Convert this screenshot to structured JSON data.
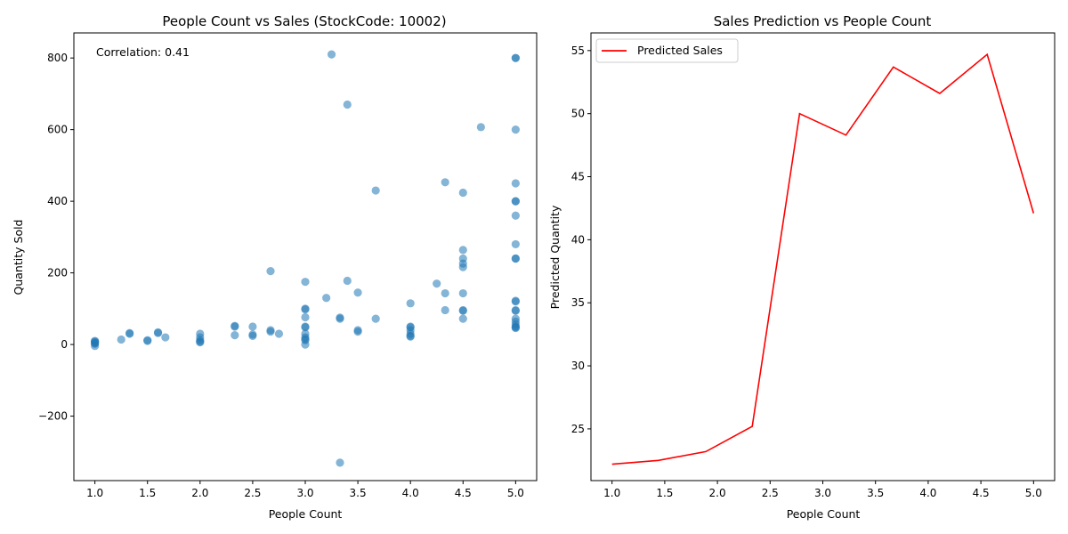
{
  "chart_data": [
    {
      "type": "scatter",
      "title": "People Count vs Sales (StockCode: 10002)",
      "xlabel": "People Count",
      "ylabel": "Quantity Sold",
      "xlim": [
        0.8,
        5.2
      ],
      "ylim": [
        -380,
        870
      ],
      "xticks": [
        "1.0",
        "1.5",
        "2.0",
        "2.5",
        "3.0",
        "3.5",
        "4.0",
        "4.5",
        "5.0"
      ],
      "yticks": [
        "−200",
        "0",
        "200",
        "400",
        "600",
        "800"
      ],
      "annotation": "Correlation: 0.41",
      "color": "#1f77b4",
      "points": [
        [
          1.0,
          10
        ],
        [
          1.0,
          8
        ],
        [
          1.0,
          6
        ],
        [
          1.0,
          4
        ],
        [
          1.0,
          2
        ],
        [
          1.0,
          -4
        ],
        [
          1.25,
          14
        ],
        [
          1.33,
          30
        ],
        [
          1.33,
          32
        ],
        [
          1.5,
          10
        ],
        [
          1.5,
          12
        ],
        [
          1.6,
          32
        ],
        [
          1.6,
          34
        ],
        [
          1.67,
          20
        ],
        [
          2.0,
          30
        ],
        [
          2.0,
          20
        ],
        [
          2.0,
          12
        ],
        [
          2.0,
          8
        ],
        [
          2.0,
          6
        ],
        [
          2.33,
          52
        ],
        [
          2.33,
          50
        ],
        [
          2.33,
          26
        ],
        [
          2.5,
          50
        ],
        [
          2.5,
          28
        ],
        [
          2.5,
          24
        ],
        [
          2.67,
          205
        ],
        [
          2.67,
          40
        ],
        [
          2.67,
          36
        ],
        [
          2.75,
          30
        ],
        [
          3.0,
          175
        ],
        [
          3.0,
          100
        ],
        [
          3.0,
          98
        ],
        [
          3.0,
          76
        ],
        [
          3.0,
          50
        ],
        [
          3.0,
          48
        ],
        [
          3.0,
          30
        ],
        [
          3.0,
          20
        ],
        [
          3.0,
          15
        ],
        [
          3.0,
          12
        ],
        [
          3.0,
          0
        ],
        [
          3.2,
          130
        ],
        [
          3.25,
          810
        ],
        [
          3.33,
          75
        ],
        [
          3.33,
          72
        ],
        [
          3.33,
          -330
        ],
        [
          3.4,
          670
        ],
        [
          3.4,
          178
        ],
        [
          3.5,
          145
        ],
        [
          3.5,
          40
        ],
        [
          3.5,
          36
        ],
        [
          3.67,
          430
        ],
        [
          3.67,
          72
        ],
        [
          4.0,
          115
        ],
        [
          4.0,
          50
        ],
        [
          4.0,
          48
        ],
        [
          4.0,
          40
        ],
        [
          4.0,
          30
        ],
        [
          4.0,
          24
        ],
        [
          4.0,
          22
        ],
        [
          4.25,
          170
        ],
        [
          4.33,
          453
        ],
        [
          4.33,
          143
        ],
        [
          4.33,
          96
        ],
        [
          4.5,
          424
        ],
        [
          4.5,
          264
        ],
        [
          4.5,
          240
        ],
        [
          4.5,
          226
        ],
        [
          4.5,
          216
        ],
        [
          4.5,
          143
        ],
        [
          4.5,
          96
        ],
        [
          4.5,
          94
        ],
        [
          4.5,
          72
        ],
        [
          4.67,
          607
        ],
        [
          5.0,
          800
        ],
        [
          5.0,
          800
        ],
        [
          5.0,
          600
        ],
        [
          5.0,
          450
        ],
        [
          5.0,
          400
        ],
        [
          5.0,
          400
        ],
        [
          5.0,
          360
        ],
        [
          5.0,
          280
        ],
        [
          5.0,
          240
        ],
        [
          5.0,
          240
        ],
        [
          5.0,
          122
        ],
        [
          5.0,
          120
        ],
        [
          5.0,
          96
        ],
        [
          5.0,
          94
        ],
        [
          5.0,
          72
        ],
        [
          5.0,
          64
        ],
        [
          5.0,
          56
        ],
        [
          5.0,
          50
        ],
        [
          5.0,
          48
        ],
        [
          5.0,
          46
        ]
      ]
    },
    {
      "type": "line",
      "title": "Sales Prediction vs People Count",
      "xlabel": "People Count",
      "ylabel": "Predicted Quantity",
      "xlim": [
        0.8,
        5.2
      ],
      "ylim": [
        20.9,
        56.4
      ],
      "xticks": [
        "1.0",
        "1.5",
        "2.0",
        "2.5",
        "3.0",
        "3.5",
        "4.0",
        "4.5",
        "5.0"
      ],
      "yticks": [
        "25",
        "30",
        "35",
        "40",
        "45",
        "50",
        "55"
      ],
      "legend": "top-left",
      "color": "#ff0000",
      "series": [
        {
          "name": "Predicted Sales",
          "x": [
            1.0,
            1.44,
            1.89,
            2.33,
            2.78,
            3.22,
            3.67,
            4.11,
            4.56,
            5.0
          ],
          "y": [
            22.2,
            22.5,
            23.2,
            25.2,
            50.0,
            48.3,
            53.7,
            51.6,
            54.7,
            42.1
          ]
        }
      ]
    }
  ]
}
